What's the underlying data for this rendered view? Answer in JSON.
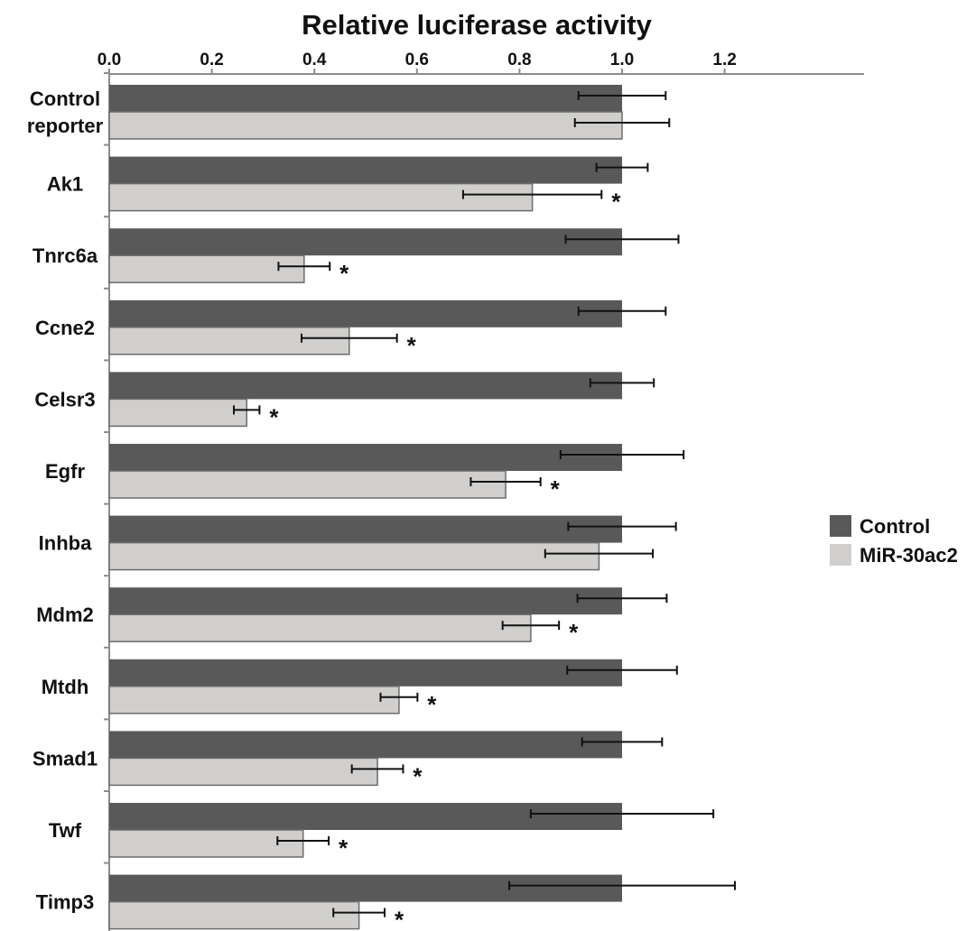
{
  "chart_data": {
    "type": "bar",
    "orientation": "horizontal",
    "title": "Relative luciferase activity",
    "xlim": [
      0,
      1.2
    ],
    "x_ticks": [
      "0.0",
      "0.2",
      "0.4",
      "0.6",
      "0.8",
      "1.0",
      "1.2"
    ],
    "axis_position": "top",
    "grid": false,
    "legend_position": "right",
    "categories": [
      [
        "Control",
        "reporter"
      ],
      [
        "Ak1"
      ],
      [
        "Tnrc6a"
      ],
      [
        "Ccne2"
      ],
      [
        "Celsr3"
      ],
      [
        "Egfr"
      ],
      [
        "Inhba"
      ],
      [
        "Mdm2"
      ],
      [
        "Mtdh"
      ],
      [
        "Smad1"
      ],
      [
        "Twf"
      ],
      [
        "Timp3"
      ]
    ],
    "series": [
      {
        "name": "Control",
        "color": "#595959",
        "values": [
          1.0,
          1.0,
          1.0,
          1.0,
          1.0,
          1.0,
          1.0,
          1.0,
          1.0,
          1.0,
          1.0,
          1.0
        ],
        "errors": [
          0.085,
          0.05,
          0.11,
          0.085,
          0.062,
          0.12,
          0.105,
          0.087,
          0.107,
          0.078,
          0.178,
          0.22
        ]
      },
      {
        "name": "MiR-30ac2",
        "color": "#d0cfcd",
        "values": [
          1.0,
          0.825,
          0.38,
          0.468,
          0.268,
          0.773,
          0.955,
          0.822,
          0.565,
          0.523,
          0.378,
          0.487
        ],
        "errors": [
          0.092,
          0.135,
          0.05,
          0.093,
          0.025,
          0.068,
          0.105,
          0.055,
          0.036,
          0.05,
          0.05,
          0.05
        ],
        "significance": [
          "",
          "*",
          "*",
          "*",
          "*",
          "*",
          "",
          "*",
          "*",
          "*",
          "*",
          "*"
        ]
      }
    ]
  }
}
